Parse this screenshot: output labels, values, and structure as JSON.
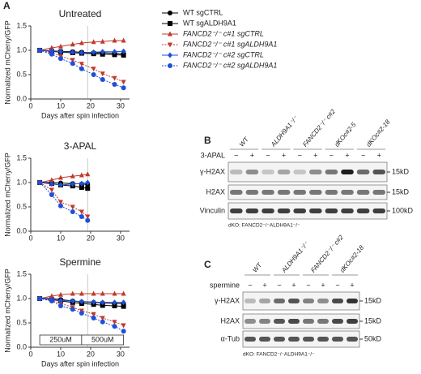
{
  "panel_a": "A",
  "chart_data": [
    {
      "type": "line",
      "title": "Untreated",
      "x_label": "Days after spin infection",
      "y_label": "Normalized mCherry/GFP",
      "x": [
        3,
        7,
        10,
        14,
        17,
        21,
        24,
        28,
        31
      ],
      "xlim": [
        0,
        33
      ],
      "xticks": [
        0,
        10,
        20,
        30
      ],
      "ylim": [
        0,
        1.5
      ],
      "yticks": [
        {
          "value": 0,
          "label": "0.0"
        },
        0.5,
        {
          "value": 1,
          "label": "1.0"
        },
        1.5
      ],
      "vline": 19,
      "series": [
        {
          "name": "WT sgCTRL",
          "color": "#000000",
          "marker": "circle",
          "dashed": false,
          "values": [
            1.0,
            0.99,
            0.98,
            0.97,
            0.96,
            0.95,
            0.95,
            0.94,
            0.93
          ]
        },
        {
          "name": "WT sgALDH9A1",
          "color": "#000000",
          "marker": "square",
          "dashed": false,
          "values": [
            1.0,
            0.98,
            0.96,
            0.95,
            0.94,
            0.93,
            0.92,
            0.91,
            0.9
          ]
        },
        {
          "name": "FANCD2⁻/⁻ c#1 sgCTRL",
          "color": "#c0392b",
          "marker": "triangle-up",
          "dashed": false,
          "values": [
            1.0,
            1.05,
            1.08,
            1.12,
            1.15,
            1.17,
            1.18,
            1.2,
            1.2
          ]
        },
        {
          "name": "FANCD2⁻/⁻ c#1 sgALDH9A1",
          "color": "#c0392b",
          "marker": "triangle-down",
          "dashed": true,
          "values": [
            1.0,
            0.95,
            0.88,
            0.8,
            0.72,
            0.62,
            0.52,
            0.43,
            0.35
          ]
        },
        {
          "name": "FANCD2⁻/⁻ c#2 sgCTRL",
          "color": "#1f4fd8",
          "marker": "diamond",
          "dashed": false,
          "values": [
            1.0,
            0.99,
            0.97,
            0.96,
            0.95,
            0.96,
            0.97,
            0.97,
            0.98
          ]
        },
        {
          "name": "FANCD2⁻/⁻ c#2 sgALDH9A1",
          "color": "#1f4fd8",
          "marker": "circle",
          "dashed": true,
          "values": [
            1.0,
            0.92,
            0.83,
            0.73,
            0.62,
            0.5,
            0.4,
            0.3,
            0.23
          ]
        }
      ]
    },
    {
      "type": "line",
      "title": "3-APAL",
      "y_label": "Normalized mCherry/GFP",
      "x": [
        3,
        7,
        10,
        14,
        17,
        19
      ],
      "xlim": [
        0,
        33
      ],
      "xticks": [
        0,
        10,
        20,
        30
      ],
      "ylim": [
        0,
        1.5
      ],
      "yticks": [
        {
          "value": 0,
          "label": "0.0"
        },
        0.5,
        {
          "value": 1,
          "label": "1.0"
        },
        1.5
      ],
      "vline": 19,
      "series": [
        {
          "color": "#000000",
          "marker": "circle",
          "dashed": false,
          "values": [
            1.0,
            1.0,
            0.99,
            0.98,
            0.97,
            0.96
          ]
        },
        {
          "color": "#000000",
          "marker": "square",
          "dashed": false,
          "values": [
            1.0,
            0.98,
            0.95,
            0.93,
            0.9,
            0.88
          ]
        },
        {
          "color": "#c0392b",
          "marker": "triangle-up",
          "dashed": false,
          "values": [
            1.0,
            1.05,
            1.1,
            1.13,
            1.15,
            1.17
          ]
        },
        {
          "color": "#c0392b",
          "marker": "triangle-down",
          "dashed": true,
          "values": [
            1.0,
            0.85,
            0.6,
            0.5,
            0.4,
            0.3
          ]
        },
        {
          "color": "#1f4fd8",
          "marker": "diamond",
          "dashed": false,
          "values": [
            1.0,
            0.97,
            0.95,
            0.97,
            0.98,
            1.0
          ]
        },
        {
          "color": "#1f4fd8",
          "marker": "circle",
          "dashed": true,
          "values": [
            1.0,
            0.75,
            0.52,
            0.4,
            0.3,
            0.22
          ]
        }
      ]
    },
    {
      "type": "line",
      "title": "Spermine",
      "x_label": "Days after spin infection",
      "y_label": "Normalized mCherry/GFP",
      "x": [
        3,
        7,
        10,
        14,
        17,
        21,
        24,
        28,
        31
      ],
      "xlim": [
        0,
        33
      ],
      "xticks": [
        0,
        10,
        20,
        30
      ],
      "ylim": [
        0,
        1.5
      ],
      "yticks": [
        {
          "value": 0,
          "label": "0.0"
        },
        0.5,
        {
          "value": 1,
          "label": "1.0"
        },
        1.5
      ],
      "vline": 19,
      "annotations": [
        "250uM",
        "500uM"
      ],
      "series": [
        {
          "color": "#000000",
          "marker": "circle",
          "dashed": false,
          "values": [
            1.0,
            1.0,
            0.98,
            0.95,
            0.93,
            0.92,
            0.91,
            0.9,
            0.9
          ]
        },
        {
          "color": "#000000",
          "marker": "square",
          "dashed": false,
          "values": [
            1.0,
            0.98,
            0.95,
            0.92,
            0.9,
            0.88,
            0.86,
            0.85,
            0.84
          ]
        },
        {
          "color": "#c0392b",
          "marker": "triangle-up",
          "dashed": false,
          "values": [
            1.0,
            1.05,
            1.08,
            1.1,
            1.1,
            1.1,
            1.1,
            1.1,
            1.1
          ]
        },
        {
          "color": "#c0392b",
          "marker": "triangle-down",
          "dashed": true,
          "values": [
            1.0,
            0.97,
            0.9,
            0.82,
            0.75,
            0.68,
            0.6,
            0.52,
            0.45
          ]
        },
        {
          "color": "#1f4fd8",
          "marker": "diamond",
          "dashed": false,
          "values": [
            1.0,
            0.98,
            0.96,
            0.95,
            0.94,
            0.93,
            0.92,
            0.92,
            0.92
          ]
        },
        {
          "color": "#1f4fd8",
          "marker": "circle",
          "dashed": true,
          "values": [
            1.0,
            0.95,
            0.85,
            0.78,
            0.7,
            0.6,
            0.52,
            0.43,
            0.33
          ]
        }
      ]
    }
  ],
  "blot_b": {
    "panel": "B",
    "lanes": [
      "WT",
      "ALDH9A1⁻/⁻",
      "FANCD2⁻/⁻ c#2",
      "dKOc#2-5",
      "dKOc#2-18"
    ],
    "treatment": "3-APAL",
    "signs": [
      "−",
      "+"
    ],
    "rows": [
      {
        "label": "γ-H2AX",
        "size": "15kD"
      },
      {
        "label": "H2AX",
        "size": "15kD"
      },
      {
        "label": "Vinculin",
        "size": "100kD"
      }
    ],
    "footnote": "dKO: FANCD2⁻/⁻ALDH9A1⁻/⁻"
  },
  "blot_c": {
    "panel": "C",
    "lanes": [
      "WT",
      "ALDH9A1⁻/⁻",
      "FANCD2⁻/⁻ c#2",
      "dKOc#2-18"
    ],
    "treatment": "spermine",
    "signs": [
      "−",
      "+"
    ],
    "rows": [
      {
        "label": "γ-H2AX",
        "size": "15kD"
      },
      {
        "label": "H2AX",
        "size": "15kD"
      },
      {
        "label": "α-Tub",
        "size": "50kD"
      }
    ],
    "footnote": "dKO: FANCD2⁻/⁻ALDH9A1⁻/⁻"
  }
}
